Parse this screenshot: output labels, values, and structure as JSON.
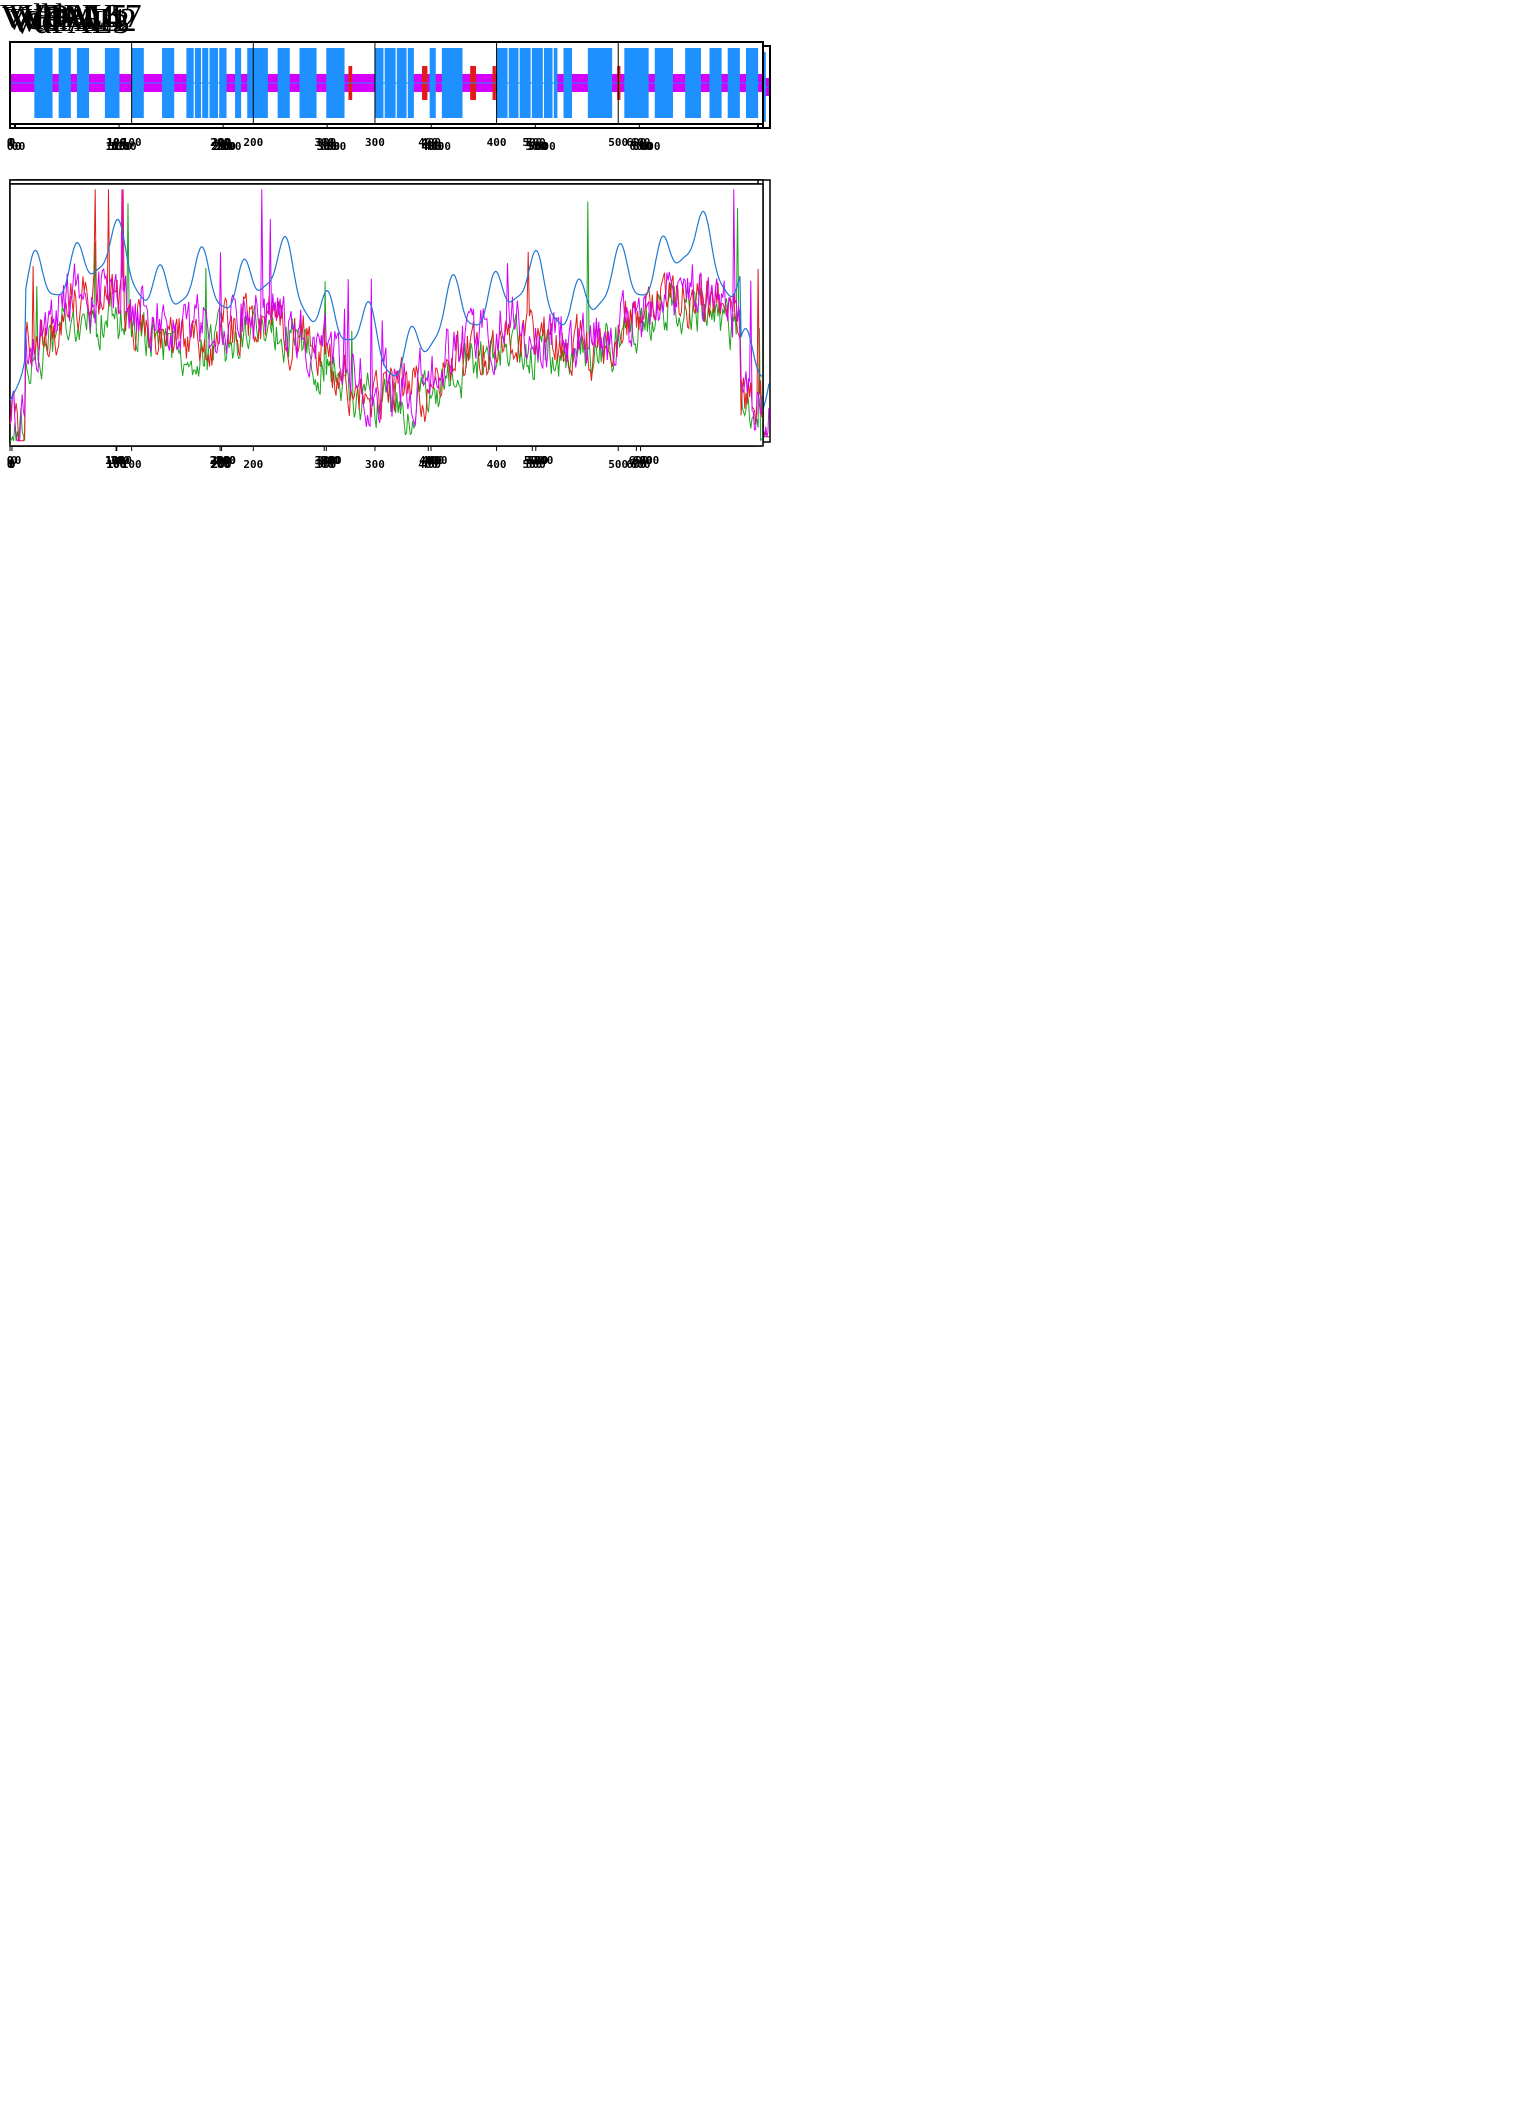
{
  "colors": {
    "helix": "#1e90ff",
    "strand": "#e31a1c",
    "coil": "#d500f9",
    "coilLine": "#1e90ff",
    "frame": "#000000",
    "green": "#1ea51e",
    "red": "#e0201c",
    "magenta": "#d500f9",
    "blue": "#1e78d2"
  },
  "chart_data": [
    {
      "type": "line",
      "title": "VdPAL1",
      "length": 714,
      "secondary_structure": {
        "ticks": [
          0,
          100,
          200,
          300,
          400,
          500,
          600
        ],
        "helices": [
          [
            5,
            18
          ],
          [
            22,
            34
          ],
          [
            38,
            52
          ],
          [
            60,
            72
          ],
          [
            79,
            100
          ],
          [
            105,
            115
          ],
          [
            120,
            130
          ],
          [
            135,
            146
          ],
          [
            160,
            172
          ],
          [
            177,
            183
          ],
          [
            186,
            193
          ],
          [
            205,
            214
          ],
          [
            218,
            225
          ],
          [
            236,
            244
          ],
          [
            259,
            290
          ],
          [
            294,
            301
          ],
          [
            305,
            310
          ],
          [
            314,
            322
          ],
          [
            327,
            332
          ],
          [
            335,
            340
          ],
          [
            348,
            353
          ],
          [
            360,
            368
          ],
          [
            401,
            427
          ],
          [
            438,
            453
          ],
          [
            469,
            527
          ],
          [
            532,
            541
          ],
          [
            550,
            563
          ],
          [
            565,
            582
          ],
          [
            587,
            605
          ],
          [
            608,
            623
          ],
          [
            632,
            639
          ],
          [
            645,
            649
          ],
          [
            659,
            666
          ],
          [
            673,
            679
          ],
          [
            683,
            695
          ],
          [
            703,
            707
          ]
        ]
      },
      "profile": {
        "ticks": [
          0,
          100,
          200,
          300,
          400,
          500,
          600
        ]
      }
    },
    {
      "type": "line",
      "title": "VdPAL2",
      "length": 714,
      "secondary_structure": {
        "ticks": [
          0,
          100,
          200,
          300,
          400,
          500,
          600
        ],
        "helices": [
          [
            4,
            16
          ],
          [
            20,
            30
          ],
          [
            35,
            48
          ],
          [
            54,
            66
          ],
          [
            72,
            83
          ],
          [
            92,
            102
          ],
          [
            110,
            120
          ],
          [
            125,
            135
          ],
          [
            140,
            152
          ],
          [
            158,
            168
          ],
          [
            176,
            185
          ],
          [
            190,
            200
          ],
          [
            214,
            223
          ],
          [
            235,
            244
          ],
          [
            260,
            300
          ],
          [
            305,
            312
          ],
          [
            318,
            327
          ],
          [
            336,
            345
          ],
          [
            362,
            372
          ],
          [
            402,
            430
          ],
          [
            438,
            448
          ],
          [
            460,
            467
          ],
          [
            485,
            520
          ],
          [
            525,
            545
          ],
          [
            552,
            565
          ],
          [
            570,
            590
          ],
          [
            594,
            612
          ],
          [
            615,
            635
          ],
          [
            642,
            650
          ],
          [
            660,
            668
          ],
          [
            676,
            686
          ],
          [
            694,
            700
          ],
          [
            705,
            710
          ]
        ]
      },
      "profile": {
        "ticks": [
          0,
          100,
          200,
          300,
          400,
          500,
          600
        ]
      }
    },
    {
      "type": "line",
      "title": "VdPAL3",
      "length": 714,
      "secondary_structure": {
        "ticks": [
          0,
          100,
          200,
          300,
          400,
          500,
          600
        ],
        "helices": [
          [
            20,
            42
          ],
          [
            48,
            58
          ],
          [
            70,
            80
          ],
          [
            95,
            108
          ],
          [
            118,
            130
          ],
          [
            145,
            158
          ],
          [
            178,
            188
          ],
          [
            205,
            215
          ],
          [
            225,
            238
          ],
          [
            250,
            262
          ],
          [
            275,
            300
          ],
          [
            305,
            312
          ],
          [
            318,
            325
          ],
          [
            335,
            342
          ],
          [
            352,
            360
          ],
          [
            368,
            372
          ],
          [
            395,
            424
          ],
          [
            440,
            458
          ],
          [
            490,
            540
          ],
          [
            548,
            560
          ],
          [
            568,
            582
          ],
          [
            598,
            612
          ],
          [
            615,
            645
          ],
          [
            650,
            660
          ],
          [
            672,
            680
          ],
          [
            688,
            700
          ],
          [
            705,
            710
          ]
        ]
      },
      "profile": {
        "ticks": [
          0,
          100,
          200,
          300,
          400,
          500,
          600
        ]
      }
    },
    {
      "type": "line",
      "title": "VdPAL4",
      "length": 714,
      "secondary_structure": {
        "ticks": [
          0,
          100,
          200,
          300,
          400,
          500,
          600
        ],
        "helices": [
          [
            22,
            35
          ],
          [
            40,
            50
          ],
          [
            55,
            68
          ],
          [
            75,
            90
          ],
          [
            105,
            118
          ],
          [
            125,
            135
          ],
          [
            140,
            150
          ],
          [
            155,
            165
          ],
          [
            180,
            190
          ],
          [
            205,
            215
          ],
          [
            225,
            235
          ],
          [
            250,
            292
          ],
          [
            300,
            308
          ],
          [
            315,
            322
          ],
          [
            330,
            338
          ],
          [
            345,
            352
          ],
          [
            368,
            378
          ],
          [
            400,
            428
          ],
          [
            445,
            453
          ],
          [
            480,
            535
          ],
          [
            540,
            548
          ],
          [
            562,
            572
          ],
          [
            580,
            590
          ],
          [
            597,
            604
          ],
          [
            608,
            648
          ],
          [
            653,
            660
          ],
          [
            672,
            680
          ],
          [
            688,
            700
          ],
          [
            705,
            712
          ]
        ]
      },
      "profile": {
        "ticks": [
          0,
          100,
          200,
          300,
          400,
          500,
          600
        ]
      }
    },
    {
      "type": "line",
      "title": "VdPAL5",
      "length": 714,
      "secondary_structure": {
        "ticks": [
          0,
          100,
          200,
          300,
          400,
          500,
          600
        ],
        "helices": [
          [
            20,
            42
          ],
          [
            50,
            62
          ],
          [
            75,
            90
          ],
          [
            115,
            128
          ],
          [
            135,
            148
          ],
          [
            160,
            172
          ],
          [
            180,
            190
          ],
          [
            205,
            212
          ],
          [
            220,
            232
          ],
          [
            250,
            300
          ],
          [
            305,
            312
          ],
          [
            318,
            325
          ],
          [
            330,
            338
          ],
          [
            345,
            352
          ],
          [
            368,
            372
          ],
          [
            400,
            428
          ],
          [
            440,
            446
          ],
          [
            490,
            545
          ],
          [
            560,
            568
          ],
          [
            575,
            590
          ],
          [
            600,
            612
          ],
          [
            618,
            650
          ],
          [
            658,
            665
          ],
          [
            672,
            680
          ],
          [
            690,
            700
          ],
          [
            705,
            712
          ]
        ]
      },
      "profile": {
        "ticks": [
          0,
          100,
          200,
          300,
          400,
          500,
          600
        ]
      }
    },
    {
      "type": "line",
      "title": "VdPAL6",
      "length": 714,
      "secondary_structure": {
        "ticks": [
          0,
          100,
          200,
          300,
          400,
          500,
          600
        ],
        "helices": [
          [
            20,
            32
          ],
          [
            36,
            48
          ],
          [
            55,
            70
          ],
          [
            75,
            90
          ],
          [
            100,
            112
          ],
          [
            120,
            130
          ],
          [
            135,
            146
          ],
          [
            152,
            162
          ],
          [
            175,
            186
          ],
          [
            210,
            218
          ],
          [
            225,
            238
          ],
          [
            250,
            265
          ],
          [
            268,
            275
          ],
          [
            280,
            290
          ],
          [
            295,
            300
          ],
          [
            305,
            312
          ],
          [
            320,
            328
          ],
          [
            340,
            350
          ],
          [
            362,
            372
          ],
          [
            400,
            430
          ],
          [
            445,
            455
          ],
          [
            480,
            535
          ],
          [
            540,
            548
          ],
          [
            562,
            572
          ],
          [
            578,
            590
          ],
          [
            598,
            650
          ],
          [
            658,
            665
          ],
          [
            680,
            690
          ],
          [
            696,
            702
          ],
          [
            706,
            712
          ]
        ]
      },
      "profile": {
        "ticks": [
          0,
          100,
          200,
          300,
          400,
          500,
          600
        ]
      }
    },
    {
      "type": "line",
      "title": "VdPAL7",
      "length": 619,
      "secondary_structure": {
        "ticks": [
          0,
          100,
          200,
          300,
          400,
          500
        ],
        "helices": [
          [
            20,
            35
          ],
          [
            40,
            50
          ],
          [
            55,
            65
          ],
          [
            78,
            90
          ],
          [
            100,
            110
          ],
          [
            125,
            135
          ],
          [
            145,
            178
          ],
          [
            185,
            190
          ],
          [
            195,
            212
          ],
          [
            220,
            230
          ],
          [
            238,
            252
          ],
          [
            260,
            275
          ],
          [
            300,
            332
          ],
          [
            345,
            350
          ],
          [
            355,
            372
          ],
          [
            400,
            450
          ],
          [
            455,
            462
          ],
          [
            475,
            495
          ],
          [
            505,
            525
          ],
          [
            530,
            545
          ],
          [
            555,
            568
          ],
          [
            575,
            585
          ],
          [
            590,
            600
          ],
          [
            605,
            615
          ]
        ]
      },
      "profile": {
        "ticks": [
          0,
          100,
          200,
          300,
          400,
          500
        ]
      }
    }
  ]
}
